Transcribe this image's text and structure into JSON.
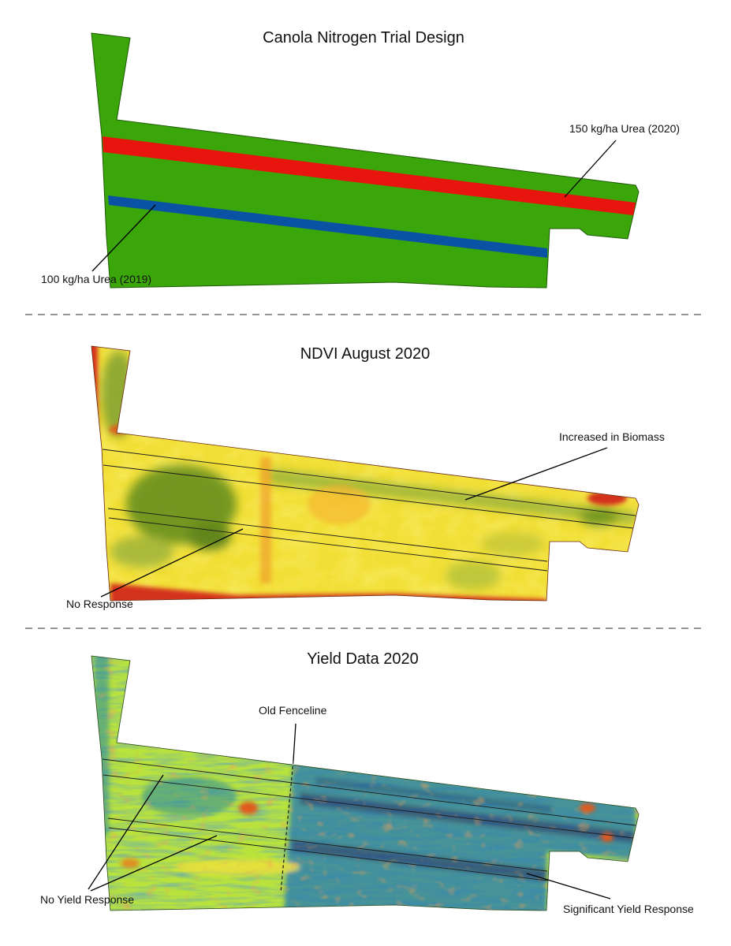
{
  "panels": [
    {
      "title": "Canola Nitrogen Trial Design",
      "labels": [
        "150 kg/ha Urea (2020)",
        "100 kg/ha Urea (2019)"
      ]
    },
    {
      "title": "NDVI August 2020",
      "labels": [
        "Increased in Biomass",
        "No Response"
      ]
    },
    {
      "title": "Yield Data 2020",
      "labels": [
        "Old Fenceline",
        "No Yield Response",
        "Significant Yield Response"
      ]
    }
  ],
  "colors": {
    "field_green": "#3aa60a",
    "strip_red": "#e8140e",
    "strip_blue": "#0a52a3",
    "ndvi_low": "#d4321c",
    "ndvi_mid": "#f5e23a",
    "ndvi_high": "#4f7c1c",
    "yield_low": "#e05a1c",
    "yield_mid": "#b9e33c",
    "yield_high": "#1a3f8a"
  }
}
